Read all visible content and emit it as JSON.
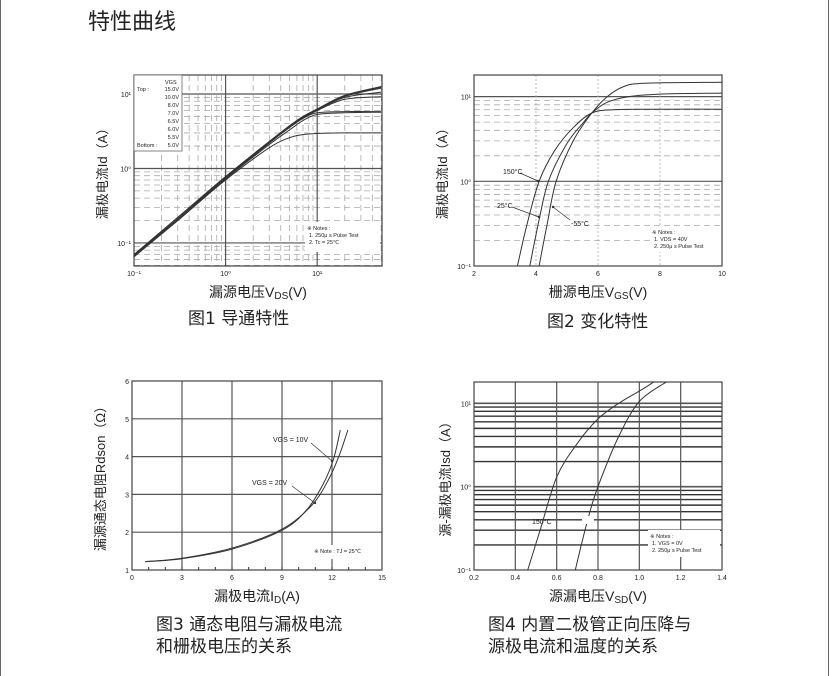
{
  "page": {
    "title": "特性曲线"
  },
  "captions": {
    "fig1": "图1 导通特性",
    "fig2": "图2 变化特性",
    "fig3_line1": "图3 通态电阻与漏极电流",
    "fig3_line2": "和栅极电压的关系",
    "fig4_line1": "图4 内置二极管正向压降与",
    "fig4_line2": "源极电流和温度的关系"
  },
  "chart_data": [
    {
      "type": "line",
      "xscale": "log",
      "yscale": "log",
      "xlim": [
        0.1,
        51
      ],
      "ylim": [
        0.049,
        18
      ],
      "x_ticks": [
        0.1,
        1,
        10
      ],
      "x_tick_labels": [
        "10⁻¹",
        "10⁰",
        "10¹"
      ],
      "y_ticks": [
        0.1,
        1,
        10
      ],
      "y_tick_labels": [
        "10⁻¹",
        "10⁰",
        "10¹"
      ],
      "xlabel": [
        "漏源电压V",
        "DS",
        "(V)"
      ],
      "ylabel": "漏极电流Id（A）",
      "grid": true,
      "legend": {
        "header": "VGS",
        "top_label": "Top :",
        "bottom_label": "Bottom :",
        "entries": [
          "15.0V",
          "10.0V",
          "8.0V",
          "7.0V",
          "6.5V",
          "6.0V",
          "5.5V",
          "5.0V"
        ],
        "placement": "top-left"
      },
      "notes": [
        "※ Notes :",
        "1. 250μ s Pulse Test",
        "2. Tc = 25℃"
      ],
      "x": [
        0.1,
        0.3,
        1,
        3,
        5,
        7,
        10,
        20,
        50
      ],
      "series": [
        {
          "name": "15.0V",
          "values": [
            0.07,
            0.22,
            0.78,
            2.3,
            3.75,
            5.0,
            6.3,
            9.6,
            12.6
          ]
        },
        {
          "name": "10.0V",
          "values": [
            0.07,
            0.21,
            0.77,
            2.3,
            3.7,
            4.95,
            6.2,
            9.5,
            12.3
          ]
        },
        {
          "name": "8.0V",
          "values": [
            0.069,
            0.21,
            0.76,
            2.25,
            3.7,
            4.9,
            6.15,
            9.3,
            12.0
          ]
        },
        {
          "name": "7.0V",
          "values": [
            0.068,
            0.21,
            0.75,
            2.25,
            3.65,
            4.85,
            6.1,
            9.0,
            10.6
          ]
        },
        {
          "name": "6.5V",
          "values": [
            0.068,
            0.21,
            0.74,
            2.2,
            3.6,
            4.8,
            6.0,
            8.5,
            9.2
          ]
        },
        {
          "name": "6.0V",
          "values": [
            0.067,
            0.2,
            0.73,
            2.2,
            3.55,
            4.7,
            5.6,
            5.8,
            5.8
          ]
        },
        {
          "name": "5.5V",
          "values": [
            0.066,
            0.2,
            0.72,
            2.1,
            3.3,
            4.4,
            5.3,
            5.6,
            5.7
          ]
        },
        {
          "name": "5.0V",
          "values": [
            0.065,
            0.2,
            0.7,
            1.9,
            2.6,
            2.85,
            2.95,
            3.0,
            3.0
          ]
        }
      ]
    },
    {
      "type": "line",
      "xscale": "linear",
      "yscale": "log",
      "xlim": [
        2,
        10
      ],
      "ylim": [
        0.1,
        18
      ],
      "x_ticks": [
        2,
        4,
        6,
        8,
        10
      ],
      "x_tick_labels": [
        "2",
        "4",
        "6",
        "8",
        "10"
      ],
      "y_ticks": [
        0.1,
        1,
        10
      ],
      "y_tick_labels": [
        "10⁻¹",
        "10⁰",
        "10¹"
      ],
      "xlabel": [
        "栅源电压V",
        "GS",
        "(V)"
      ],
      "ylabel": "漏极电流Id（A）",
      "grid": true,
      "notes": [
        "※ Notes :",
        "1. VDS = 40V",
        "2. 250μ s Pulse Test"
      ],
      "series": [
        {
          "name": "150°C",
          "points": [
            [
              3.4,
              0.1
            ],
            [
              3.7,
              0.3
            ],
            [
              4.1,
              1
            ],
            [
              4.6,
              2.3
            ],
            [
              5.2,
              4.3
            ],
            [
              5.8,
              6.4
            ],
            [
              6.5,
              7.0
            ],
            [
              8,
              7.1
            ],
            [
              10,
              7.1
            ]
          ]
        },
        {
          "name": "25°C",
          "points": [
            [
              3.8,
              0.1
            ],
            [
              4.1,
              0.35
            ],
            [
              4.4,
              1
            ],
            [
              5,
              2.8
            ],
            [
              5.5,
              4.8
            ],
            [
              5.8,
              6.4
            ],
            [
              6.3,
              8.6
            ],
            [
              7,
              10
            ],
            [
              8,
              10.7
            ],
            [
              10,
              11
            ]
          ]
        },
        {
          "name": "-55°C",
          "points": [
            [
              4.1,
              0.1
            ],
            [
              4.35,
              0.3
            ],
            [
              4.65,
              1
            ],
            [
              5.2,
              3
            ],
            [
              5.8,
              6.4
            ],
            [
              6.3,
              10
            ],
            [
              6.8,
              13
            ],
            [
              7.5,
              14.4
            ],
            [
              10,
              14.8
            ]
          ]
        }
      ]
    },
    {
      "type": "line",
      "xscale": "linear",
      "yscale": "linear",
      "xlim": [
        0,
        15
      ],
      "ylim": [
        1,
        6
      ],
      "x_ticks": [
        0,
        3,
        6,
        9,
        12,
        15
      ],
      "x_tick_labels": [
        "0",
        "3",
        "6",
        "9",
        "12",
        "15"
      ],
      "y_ticks": [
        1,
        2,
        3,
        4,
        5,
        6
      ],
      "y_tick_labels": [
        "1",
        "2",
        "3",
        "4",
        "5",
        "6"
      ],
      "xlabel": [
        "漏极电流I",
        "D",
        "(A)"
      ],
      "ylabel": "漏源通态电阻Rdson（Ω）",
      "grid": true,
      "notes": [
        "※ Note : TJ = 25℃"
      ],
      "series": [
        {
          "name": "VGS = 10V",
          "points": [
            [
              0.8,
              1.22
            ],
            [
              3,
              1.3
            ],
            [
              6,
              1.55
            ],
            [
              9,
              2.05
            ],
            [
              10.5,
              2.6
            ],
            [
              11.5,
              3.3
            ],
            [
              12.1,
              3.95
            ],
            [
              12.5,
              4.7
            ]
          ]
        },
        {
          "name": "VGS = 20V",
          "points": [
            [
              0.8,
              1.22
            ],
            [
              3,
              1.31
            ],
            [
              6,
              1.58
            ],
            [
              9,
              2.08
            ],
            [
              10.8,
              2.72
            ],
            [
              11.8,
              3.4
            ],
            [
              12.45,
              4.05
            ],
            [
              12.95,
              4.7
            ]
          ]
        }
      ]
    },
    {
      "type": "line",
      "xscale": "linear",
      "yscale": "log",
      "xlim": [
        0.2,
        1.4
      ],
      "ylim": [
        0.1,
        18
      ],
      "x_ticks": [
        0.2,
        0.4,
        0.6,
        0.8,
        1.0,
        1.2,
        1.4
      ],
      "x_tick_labels": [
        "0.2",
        "0.4",
        "0.6",
        "0.8",
        "1.0",
        "1.2",
        "1.4"
      ],
      "y_ticks": [
        0.1,
        1,
        10
      ],
      "y_tick_labels": [
        "10⁻¹",
        "10⁰",
        "10¹"
      ],
      "xlabel": [
        "源漏电压V",
        "SD",
        "(V)"
      ],
      "ylabel": "源-漏极电流Isd（A）",
      "grid": true,
      "notes": [
        "※ Notes :",
        "1. VGS = 0V",
        "2. 250μ s Pulse Test"
      ],
      "series": [
        {
          "name": "150°C",
          "points": [
            [
              0.46,
              0.1
            ],
            [
              0.52,
              0.3
            ],
            [
              0.6,
              1.3
            ],
            [
              0.7,
              3.3
            ],
            [
              0.8,
              6.5
            ],
            [
              0.9,
              10
            ],
            [
              1.0,
              14
            ],
            [
              1.07,
              18
            ]
          ]
        },
        {
          "points": [
            [
              0.69,
              0.1
            ],
            [
              0.75,
              0.4
            ],
            [
              0.8,
              1
            ],
            [
              0.9,
              4
            ],
            [
              1.0,
              10.5
            ],
            [
              1.13,
              18
            ]
          ]
        }
      ]
    }
  ]
}
